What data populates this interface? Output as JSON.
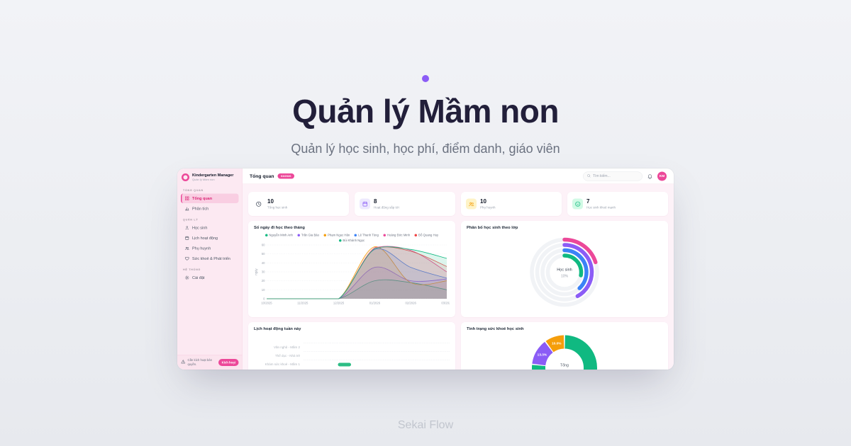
{
  "hero": {
    "title": "Quản lý Mầm non",
    "subtitle": "Quản lý học sinh, học phí, điểm danh, giáo viên",
    "footer": "Sekai Flow",
    "accent_color": "#8b5cf6"
  },
  "app": {
    "brand": {
      "name": "Kindergarten Manager",
      "tagline": "Quản lý Mầm non",
      "color": "#ec4899"
    },
    "topbar": {
      "title": "Tổng quan",
      "badge": "03/2026",
      "search_placeholder": "Tìm kiếm...",
      "avatar_initials": "KM"
    },
    "sidebar": {
      "sections": [
        {
          "label": "TỔNG QUAN",
          "items": [
            {
              "label": "Tổng quan",
              "icon": "grid",
              "active": true
            },
            {
              "label": "Phân tích",
              "icon": "bars",
              "active": false
            }
          ]
        },
        {
          "label": "QUẢN LÝ",
          "items": [
            {
              "label": "Học sinh",
              "icon": "student",
              "active": false
            },
            {
              "label": "Lịch hoạt động",
              "icon": "calendar",
              "active": false
            },
            {
              "label": "Phụ huynh",
              "icon": "users",
              "active": false
            },
            {
              "label": "Sức khoẻ & Phát triển",
              "icon": "heart",
              "active": false
            }
          ]
        },
        {
          "label": "HỆ THỐNG",
          "items": [
            {
              "label": "Cài đặt",
              "icon": "gear",
              "active": false
            }
          ]
        }
      ],
      "license_notice": {
        "text": "Cần kích hoạt bản quyền.",
        "button": "Kích hoạt"
      }
    },
    "stats": [
      {
        "value": "10",
        "label": "Tổng học sinh",
        "icon": "clock",
        "color": "#374151",
        "bg": "transparent"
      },
      {
        "value": "8",
        "label": "Hoạt động sắp tới",
        "icon": "calendar",
        "color": "#8b5cf6",
        "bg": "#ede9fe"
      },
      {
        "value": "10",
        "label": "Phụ huynh",
        "icon": "users",
        "color": "#f59e0b",
        "bg": "#fef3c7"
      },
      {
        "value": "7",
        "label": "Học sinh khoẻ mạnh",
        "icon": "smile",
        "color": "#10b981",
        "bg": "#d1fae5"
      }
    ]
  },
  "chart_data": [
    {
      "type": "line",
      "title": "Số ngày đi học theo tháng",
      "xlabel": "",
      "ylabel": "ngày",
      "x": [
        "10/2025",
        "11/2025",
        "12/2025",
        "01/2026",
        "02/2026",
        "03/2026"
      ],
      "ylim": [
        0,
        60
      ],
      "yticks": [
        0,
        10,
        20,
        30,
        40,
        50,
        60
      ],
      "grid": true,
      "legend_position": "top",
      "series": [
        {
          "name": "Nguyễn Minh Anh",
          "color": "#10b981",
          "values": [
            0,
            0,
            0,
            20,
            18,
            10
          ]
        },
        {
          "name": "Trần Gia Bảo",
          "color": "#8b5cf6",
          "values": [
            0,
            0,
            0,
            35,
            20,
            22
          ]
        },
        {
          "name": "Phạm Ngọc Hân",
          "color": "#f59e0b",
          "values": [
            0,
            0,
            0,
            58,
            18,
            20
          ]
        },
        {
          "name": "Lê Thanh Tùng",
          "color": "#3b82f6",
          "values": [
            0,
            0,
            0,
            55,
            35,
            23
          ]
        },
        {
          "name": "Hoàng Đức Minh",
          "color": "#ec4899",
          "values": [
            0,
            0,
            0,
            57,
            54,
            30
          ]
        },
        {
          "name": "Đỗ Quang Huy",
          "color": "#ef4444",
          "values": [
            0,
            0,
            0,
            56,
            53,
            36
          ]
        },
        {
          "name": "Bùi Khánh Ngọc",
          "color": "#10b981",
          "values": [
            0,
            0,
            0,
            56,
            55,
            45
          ]
        }
      ]
    },
    {
      "type": "radial",
      "title": "Phân bố học sinh theo lớp",
      "center_label": "Học sinh",
      "center_value": "10%",
      "track_color": "#f1f3f6",
      "rings": [
        {
          "color": "#ec4899",
          "percent": 20
        },
        {
          "color": "#8b5cf6",
          "percent": 42
        },
        {
          "color": "#3b82f6",
          "percent": 38
        },
        {
          "color": "#10b981",
          "percent": 28
        }
      ]
    },
    {
      "type": "gantt",
      "title": "Lịch hoạt động tuần này",
      "rows": [
        "Văn nghệ - Mầm 2",
        "Thể dục - Nhà trẻ",
        "Khám sức khoẻ - Mầm 1"
      ],
      "bars": [
        {
          "row": 2,
          "start_pct": 23.5,
          "width_pct": 9,
          "color": "#2dbd85"
        }
      ]
    },
    {
      "type": "pie",
      "title": "Tình trạng sức khoẻ học sinh",
      "center_label": "Tổng",
      "slices": [
        {
          "label": "76.7%",
          "value": 76.7,
          "color": "#10b981",
          "show_label": false
        },
        {
          "label": "13.3%",
          "value": 13.3,
          "color": "#8b5cf6",
          "show_label": true
        },
        {
          "label": "10.0%",
          "value": 10.0,
          "color": "#f59e0b",
          "show_label": true
        }
      ]
    }
  ]
}
